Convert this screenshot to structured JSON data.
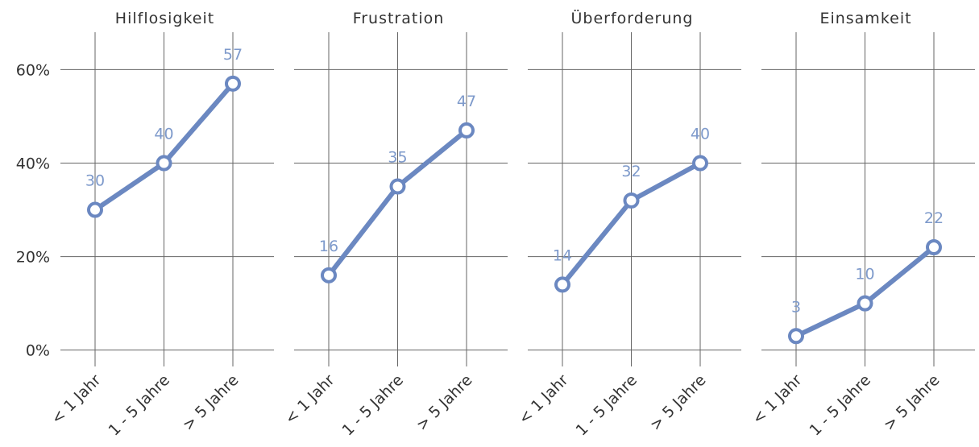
{
  "chart_data": [
    {
      "type": "line",
      "title": "Hilflosigkeit",
      "categories": [
        "< 1 Jahr",
        "1 - 5 Jahre",
        "> 5 Jahre"
      ],
      "values": [
        30,
        40,
        57
      ],
      "color": "#6b88c1",
      "ylim": [
        -3.5,
        68
      ],
      "yticks": [
        {
          "value": 0,
          "label": "0%"
        },
        {
          "value": 20,
          "label": "20%"
        },
        {
          "value": 40,
          "label": "40%"
        },
        {
          "value": 60,
          "label": "60%"
        }
      ],
      "grid": true
    },
    {
      "type": "line",
      "title": "Frustration",
      "categories": [
        "< 1 Jahr",
        "1 - 5 Jahre",
        "> 5 Jahre"
      ],
      "values": [
        16,
        35,
        47
      ],
      "color": "#6b88c1",
      "ylim": [
        -3.5,
        68
      ],
      "yticks": [
        0,
        20,
        40,
        60
      ],
      "grid": true
    },
    {
      "type": "line",
      "title": "Überforderung",
      "categories": [
        "< 1 Jahr",
        "1 - 5 Jahre",
        "> 5 Jahre"
      ],
      "values": [
        14,
        32,
        40
      ],
      "color": "#6b88c1",
      "ylim": [
        -3.5,
        68
      ],
      "yticks": [
        0,
        20,
        40,
        60
      ],
      "grid": true
    },
    {
      "type": "line",
      "title": "Einsamkeit",
      "categories": [
        "< 1 Jahr",
        "1 - 5 Jahre",
        "> 5 Jahre"
      ],
      "values": [
        3,
        10,
        22
      ],
      "color": "#6b88c1",
      "ylim": [
        -3.5,
        68
      ],
      "yticks": [
        0,
        20,
        40,
        60
      ],
      "grid": true
    }
  ]
}
